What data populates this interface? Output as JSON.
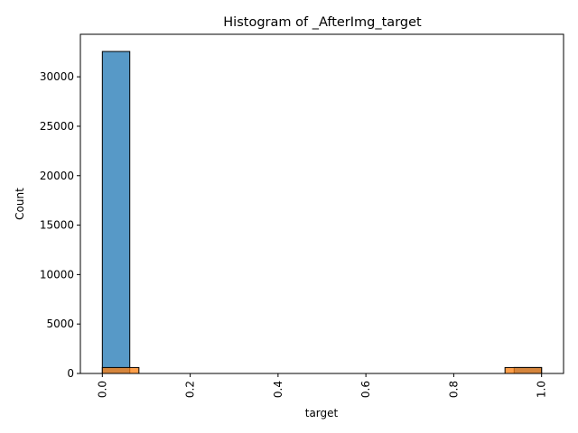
{
  "chart_data": {
    "type": "bar",
    "title": "Histogram of _AfterImg_target",
    "xlabel": "target",
    "ylabel": "Count",
    "xlim": [
      -0.05,
      1.05
    ],
    "ylim": [
      0,
      34300
    ],
    "x_ticks": [
      0.0,
      0.2,
      0.4,
      0.6,
      0.8,
      1.0
    ],
    "x_tick_labels": [
      "0.0",
      "0.2",
      "0.4",
      "0.6",
      "0.8",
      "1.0"
    ],
    "y_ticks": [
      0,
      5000,
      10000,
      15000,
      20000,
      25000,
      30000
    ],
    "y_tick_labels": [
      "0",
      "5000",
      "10000",
      "15000",
      "20000",
      "25000",
      "30000"
    ],
    "grid": false,
    "legend": false,
    "series": [
      {
        "color": "#1f77b4",
        "bin_edges": [
          0.0,
          0.0625,
          0.125,
          0.1875,
          0.25,
          0.3125,
          0.375,
          0.4375,
          0.5,
          0.5625,
          0.625,
          0.6875,
          0.75,
          0.8125,
          0.875,
          0.9375,
          1.0
        ],
        "values": [
          32560,
          0,
          0,
          0,
          0,
          0,
          0,
          0,
          0,
          0,
          0,
          0,
          0,
          0,
          0,
          600
        ]
      },
      {
        "color": "#ff7f0e",
        "bin_edges": [
          0.0,
          0.0833,
          0.1667,
          0.25,
          0.3333,
          0.4167,
          0.5,
          0.5833,
          0.6667,
          0.75,
          0.8333,
          0.9167,
          1.0
        ],
        "values": [
          600,
          0,
          0,
          0,
          0,
          0,
          0,
          0,
          0,
          0,
          0,
          600
        ]
      }
    ]
  }
}
